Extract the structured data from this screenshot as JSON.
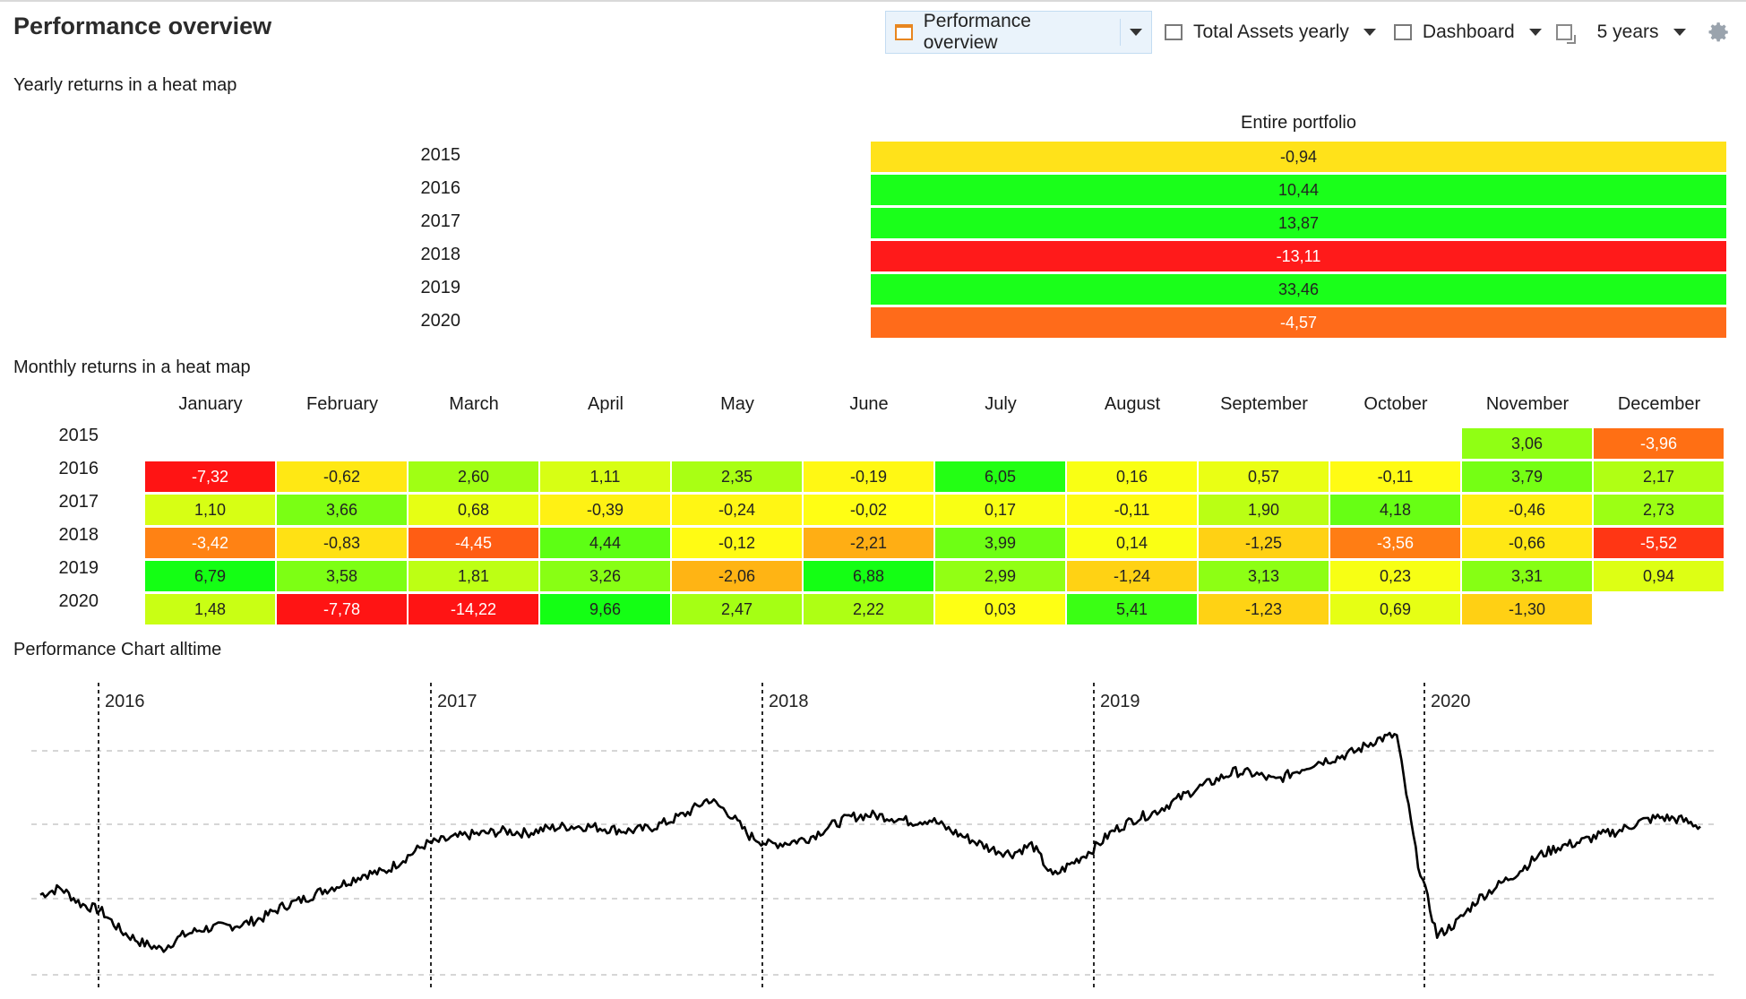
{
  "page_title": "Performance overview",
  "toolbar": {
    "items": [
      {
        "label": "Performance overview",
        "icon": "chart-view-icon",
        "active": true
      },
      {
        "label": "Total Assets yearly",
        "icon": "chart-view-icon",
        "active": false
      },
      {
        "label": "Dashboard",
        "icon": "dashboard-icon",
        "active": false
      },
      {
        "label": "",
        "icon": "new-chart-icon",
        "active": false
      },
      {
        "label": "5 years",
        "icon": "",
        "active": false
      }
    ]
  },
  "yearly_section": {
    "label": "Yearly returns in a heat map",
    "column": "Entire portfolio",
    "rows": [
      {
        "year": "2015",
        "value": "-0,94",
        "color": "#ffe21a"
      },
      {
        "year": "2016",
        "value": "10,44",
        "color": "#1aff1a"
      },
      {
        "year": "2017",
        "value": "13,87",
        "color": "#1aff1a"
      },
      {
        "year": "2018",
        "value": "-13,11",
        "color": "#ff1a1a"
      },
      {
        "year": "2019",
        "value": "33,46",
        "color": "#1aff1a"
      },
      {
        "year": "2020",
        "value": "-4,57",
        "color": "#ff6b1a"
      }
    ]
  },
  "monthly_section": {
    "label": "Monthly returns in a heat map",
    "months": [
      "January",
      "February",
      "March",
      "April",
      "May",
      "June",
      "July",
      "August",
      "September",
      "October",
      "November",
      "December"
    ],
    "rows": [
      {
        "year": "2015",
        "values": [
          "",
          "",
          "",
          "",
          "",
          "",
          "",
          "",
          "",
          "",
          "3,06",
          "-3,96"
        ]
      },
      {
        "year": "2016",
        "values": [
          "-7,32",
          "-0,62",
          "2,60",
          "1,11",
          "2,35",
          "-0,19",
          "6,05",
          "0,16",
          "0,57",
          "-0,11",
          "3,79",
          "2,17"
        ]
      },
      {
        "year": "2017",
        "values": [
          "1,10",
          "3,66",
          "0,68",
          "-0,39",
          "-0,24",
          "-0,02",
          "0,17",
          "-0,11",
          "1,90",
          "4,18",
          "-0,46",
          "2,73"
        ]
      },
      {
        "year": "2018",
        "values": [
          "-3,42",
          "-0,83",
          "-4,45",
          "4,44",
          "-0,12",
          "-2,21",
          "3,99",
          "0,14",
          "-1,25",
          "-3,56",
          "-0,66",
          "-5,52"
        ]
      },
      {
        "year": "2019",
        "values": [
          "6,79",
          "3,58",
          "1,81",
          "3,26",
          "-2,06",
          "6,88",
          "2,99",
          "-1,24",
          "3,13",
          "0,23",
          "3,31",
          "0,94"
        ]
      },
      {
        "year": "2020",
        "values": [
          "1,48",
          "-7,78",
          "-14,22",
          "9,66",
          "2,47",
          "2,22",
          "0,03",
          "5,41",
          "-1,23",
          "0,69",
          "-1,30",
          ""
        ]
      }
    ]
  },
  "chart_section": {
    "label": "Performance Chart alltime"
  },
  "chart_data": {
    "type": "line",
    "x_tick_labels": [
      "2016",
      "2017",
      "2018",
      "2019",
      "2020"
    ],
    "series": [
      {
        "values": [
          100,
          101.5,
          98,
          96.5,
          92,
          89.5,
          88,
          91,
          92.5,
          93,
          93.5,
          95,
          97.5,
          99,
          101,
          102.5,
          104.5,
          105,
          108,
          111,
          112,
          113,
          113.5,
          114,
          113.5,
          114.5,
          115,
          115,
          114.5,
          114,
          114.5,
          116,
          118,
          121,
          118,
          113,
          111,
          111.5,
          112.5,
          115,
          117,
          117.5,
          117,
          116,
          116.5,
          114,
          112,
          110,
          109,
          111,
          104,
          107,
          110,
          114,
          116.5,
          118,
          120.5,
          123,
          125,
          127,
          126.5,
          125,
          127,
          129,
          130,
          131.5,
          134,
          135,
          108,
          91,
          94,
          99,
          102,
          105,
          108.5,
          110.5,
          111.5,
          113,
          114,
          116,
          117,
          116.5,
          115
        ]
      }
    ],
    "grid": "horizontal dashed",
    "year_markers": "vertical dashed"
  }
}
